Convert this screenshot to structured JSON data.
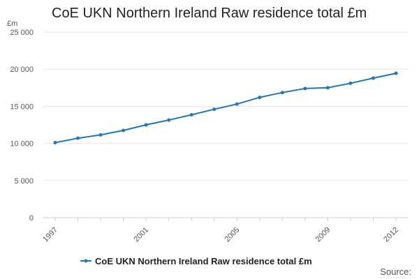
{
  "chart_data": {
    "type": "line",
    "title": "CoE UKN Northern Ireland Raw residence total £m",
    "ylabel": "£m",
    "xlabel": "",
    "x": [
      1997,
      1998,
      1999,
      2000,
      2001,
      2002,
      2003,
      2004,
      2005,
      2006,
      2007,
      2008,
      2009,
      2010,
      2011,
      2012
    ],
    "x_tick_labels": [
      "1997",
      "2001",
      "2005",
      "2009",
      "2012"
    ],
    "y_tick_labels": [
      "0",
      "5 000",
      "10 000",
      "15 000",
      "20 000",
      "25 000"
    ],
    "ylim": [
      0,
      25000
    ],
    "grid": true,
    "legend_position": "bottom",
    "series": [
      {
        "name": "CoE UKN Northern Ireland Raw residence total £m",
        "color": "#1f77b4",
        "values": [
          10100,
          10700,
          11150,
          11750,
          12500,
          13150,
          13850,
          14600,
          15300,
          16200,
          16850,
          17400,
          17500,
          18100,
          18800,
          19450
        ]
      }
    ],
    "source_label": "Source:"
  }
}
